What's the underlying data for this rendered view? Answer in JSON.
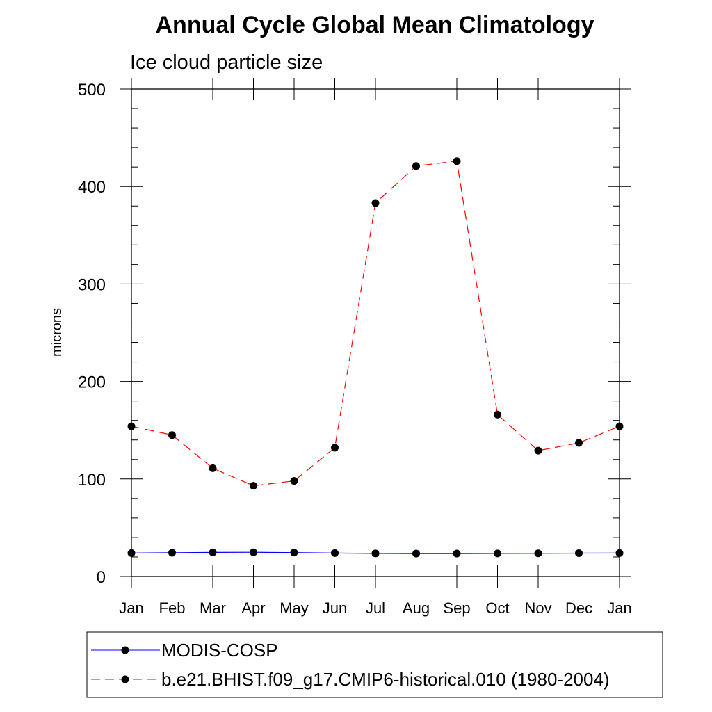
{
  "chart_data": {
    "type": "line",
    "title": "Annual Cycle Global Mean Climatology",
    "subtitle": "Ice cloud particle size",
    "xlabel": "",
    "ylabel": "microns",
    "ylim": [
      0,
      500
    ],
    "yticks": [
      0,
      100,
      200,
      300,
      400,
      500
    ],
    "ytick_labels": [
      "0",
      "100",
      "200",
      "300",
      "400",
      "500"
    ],
    "categories": [
      "Jan",
      "Feb",
      "Mar",
      "Apr",
      "May",
      "Jun",
      "Jul",
      "Aug",
      "Sep",
      "Oct",
      "Nov",
      "Dec",
      "Jan"
    ],
    "series": [
      {
        "name": "MODIS-COSP",
        "color": "#0000ff",
        "style": "solid",
        "values": [
          24,
          24.3,
          24.7,
          24.8,
          24.5,
          24,
          23.6,
          23.5,
          23.5,
          23.6,
          23.7,
          23.9,
          24
        ]
      },
      {
        "name": "b.e21.BHIST.f09_g17.CMIP6-historical.010 (1980-2004)",
        "color": "#ff0000",
        "style": "dashed",
        "values": [
          154,
          145,
          111,
          93,
          98,
          132,
          383,
          421,
          426,
          166,
          129,
          137,
          154
        ]
      }
    ],
    "legend_position": "bottom",
    "grid": false
  }
}
